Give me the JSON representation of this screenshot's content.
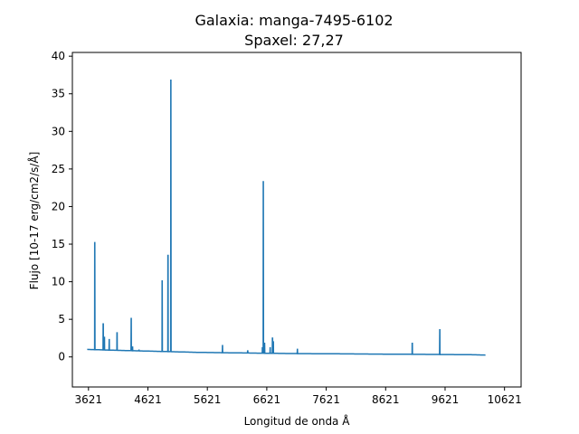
{
  "chart_data": {
    "type": "line",
    "title": "Galaxia: manga-7495-6102",
    "subtitle": "Spaxel: 27,27",
    "xlabel": "Longitud de onda Å",
    "ylabel": "Flujo [10-17 erg/cm2/s/Å]",
    "xlim": [
      3350,
      10900
    ],
    "ylim": [
      -4,
      40.5
    ],
    "xticks": [
      3621,
      4621,
      5621,
      6621,
      7621,
      8621,
      9621,
      10621
    ],
    "yticks": [
      0,
      5,
      10,
      15,
      20,
      25,
      30,
      35,
      40
    ],
    "grid": false,
    "series_color": "#1f77b4",
    "continuum": [
      [
        3600,
        1.0
      ],
      [
        4000,
        0.9
      ],
      [
        4500,
        0.8
      ],
      [
        5000,
        0.7
      ],
      [
        5500,
        0.6
      ],
      [
        6000,
        0.55
      ],
      [
        6500,
        0.5
      ],
      [
        7000,
        0.45
      ],
      [
        8000,
        0.4
      ],
      [
        9000,
        0.35
      ],
      [
        10000,
        0.3
      ],
      [
        10300,
        0.25
      ]
    ],
    "emission_lines": [
      {
        "x": 3727,
        "y": 15.2
      },
      {
        "x": 3869,
        "y": 4.4
      },
      {
        "x": 3889,
        "y": 2.6
      },
      {
        "x": 3970,
        "y": 2.3
      },
      {
        "x": 4102,
        "y": 3.2
      },
      {
        "x": 4340,
        "y": 5.1
      },
      {
        "x": 4363,
        "y": 1.3
      },
      {
        "x": 4471,
        "y": 0.9
      },
      {
        "x": 4861,
        "y": 10.1
      },
      {
        "x": 4959,
        "y": 13.5
      },
      {
        "x": 5007,
        "y": 36.8
      },
      {
        "x": 5876,
        "y": 1.5
      },
      {
        "x": 6300,
        "y": 0.8
      },
      {
        "x": 6548,
        "y": 1.2
      },
      {
        "x": 6563,
        "y": 23.3
      },
      {
        "x": 6584,
        "y": 1.8
      },
      {
        "x": 6678,
        "y": 1.2
      },
      {
        "x": 6717,
        "y": 2.5
      },
      {
        "x": 6731,
        "y": 2.0
      },
      {
        "x": 7136,
        "y": 1.0
      },
      {
        "x": 9069,
        "y": 1.8
      },
      {
        "x": 9532,
        "y": 3.6
      }
    ]
  }
}
